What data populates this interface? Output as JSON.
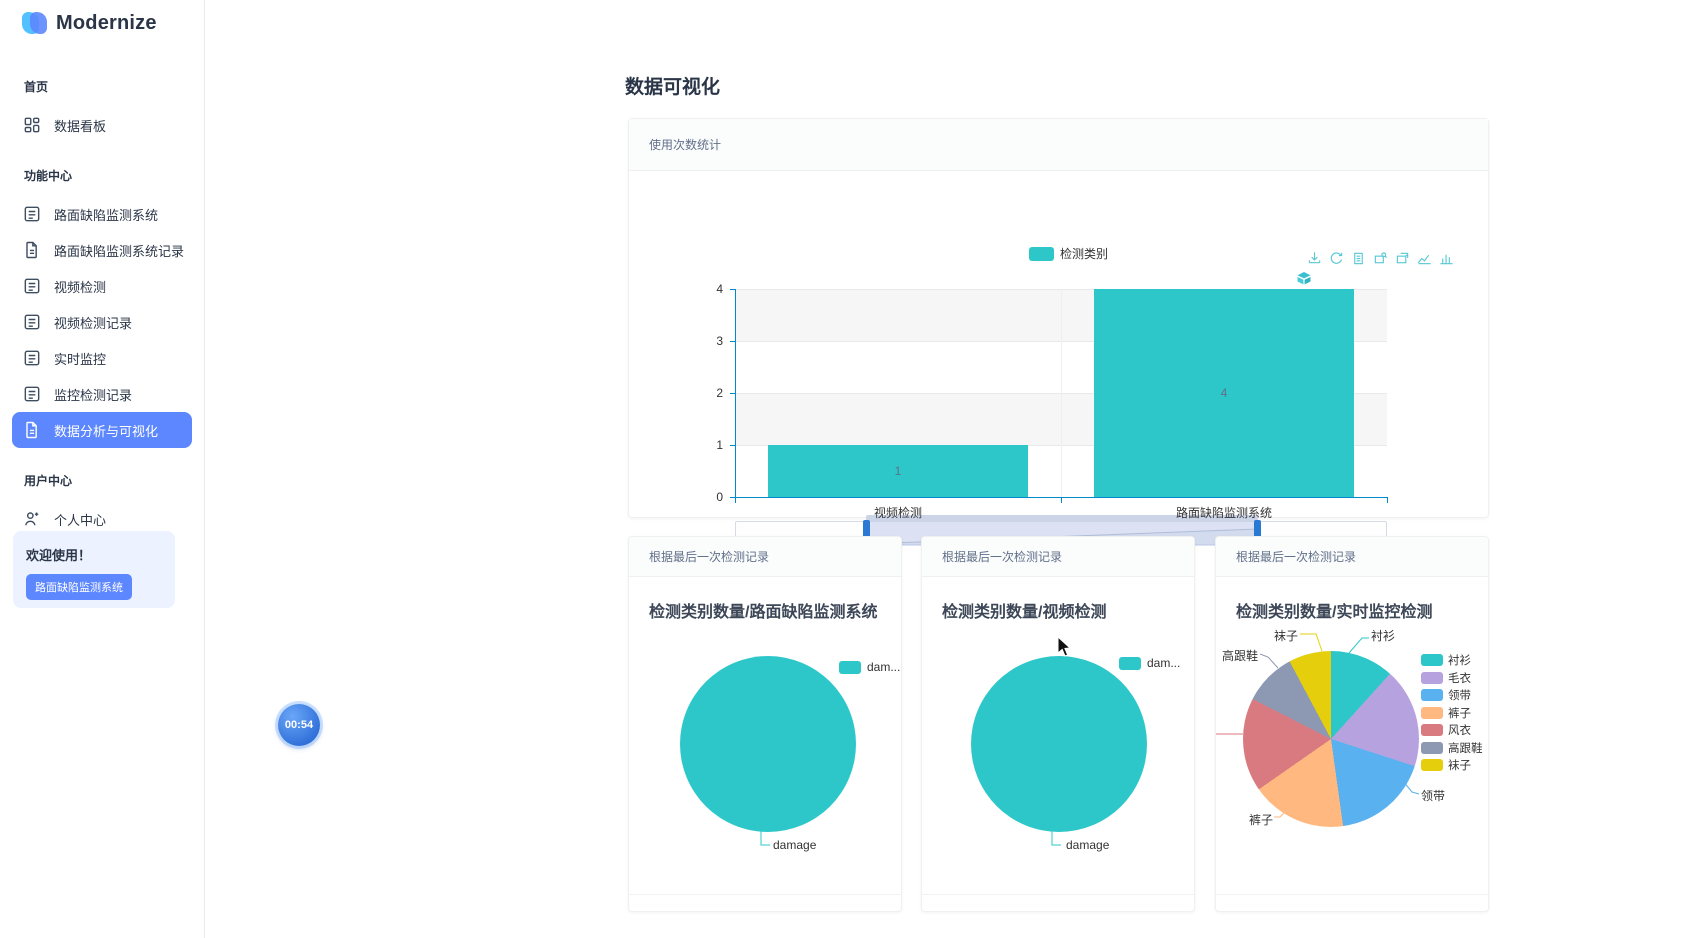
{
  "app": {
    "brand": "Modernize"
  },
  "page": {
    "title": "数据可视化"
  },
  "timer_badge": "00:54",
  "colors": {
    "primary": "#5d87ff",
    "teal": "#2ec7c9",
    "axis_line": "#008acd",
    "active_item_bg": "#5d87ff",
    "welcome_bg": "#ecf2ff"
  },
  "sidebar": {
    "sections": [
      {
        "label": "首页",
        "items": [
          {
            "id": "dashboard",
            "label": "数据看板",
            "icon": "dashboard-grid-icon",
            "active": false
          }
        ]
      },
      {
        "label": "功能中心",
        "items": [
          {
            "id": "road-defect-system",
            "label": "路面缺陷监测系统",
            "icon": "list-icon",
            "active": false
          },
          {
            "id": "road-defect-system-records",
            "label": "路面缺陷监测系统记录",
            "icon": "file-icon",
            "active": false
          },
          {
            "id": "video-detection",
            "label": "视频检测",
            "icon": "list-icon",
            "active": false
          },
          {
            "id": "video-detection-records",
            "label": "视频检测记录",
            "icon": "list-icon",
            "active": false
          },
          {
            "id": "realtime-monitor",
            "label": "实时监控",
            "icon": "list-icon",
            "active": false
          },
          {
            "id": "monitor-records",
            "label": "监控检测记录",
            "icon": "list-icon",
            "active": false
          },
          {
            "id": "data-analysis",
            "label": "数据分析与可视化",
            "icon": "file-icon",
            "active": true
          }
        ]
      },
      {
        "label": "用户中心",
        "items": [
          {
            "id": "personal-center",
            "label": "个人中心",
            "icon": "person-add-icon",
            "active": false
          }
        ]
      }
    ],
    "welcome": {
      "title": "欢迎使用！",
      "button": "路面缺陷监测系统"
    }
  },
  "chart_data": [
    {
      "type": "bar",
      "panel_header": "使用次数统计",
      "legend": [
        {
          "name": "检测类别",
          "color": "#2ec7c9"
        }
      ],
      "legend_position": "top-center",
      "categories": [
        "视频检测",
        "路面缺陷监测系统"
      ],
      "series": [
        {
          "name": "检测类别",
          "values": [
            1,
            4
          ],
          "color": "#2ec7c9"
        }
      ],
      "value_labels": [
        "1",
        "4"
      ],
      "ylim": [
        0,
        4
      ],
      "yticks": [
        0,
        1,
        2,
        3,
        4
      ],
      "grid": "horizontal gridlines with alternating split-area bands",
      "toolbox": [
        "save-image-icon",
        "restore-icon",
        "data-view-icon",
        "data-zoom-icon",
        "zoom-reset-icon",
        "line-chart-icon",
        "bar-chart-icon",
        "stack-icon"
      ],
      "datazoom": {
        "start_pct": 20,
        "end_pct": 80
      }
    },
    {
      "type": "pie",
      "panel_header": "根据最后一次检测记录",
      "title": "检测类别数量/路面缺陷监测系统",
      "legend": [
        {
          "name": "dam...",
          "color": "#2ec7c9"
        }
      ],
      "slices": [
        {
          "label": "damage",
          "pct": 100,
          "color": "#2ec7c9"
        }
      ],
      "callouts": [
        {
          "text": "damage"
        }
      ]
    },
    {
      "type": "pie",
      "panel_header": "根据最后一次检测记录",
      "title": "检测类别数量/视频检测",
      "legend": [
        {
          "name": "dam...",
          "color": "#2ec7c9"
        }
      ],
      "slices": [
        {
          "label": "damage",
          "pct": 100,
          "color": "#2ec7c9"
        }
      ],
      "callouts": [
        {
          "text": "damage"
        }
      ]
    },
    {
      "type": "pie",
      "panel_header": "根据最后一次检测记录",
      "title": "检测类别数量/实时监控检测",
      "legend": [
        {
          "name": "衬衫",
          "color": "#2ec7c9"
        },
        {
          "name": "毛衣",
          "color": "#b6a2de"
        },
        {
          "name": "领带",
          "color": "#5ab1ef"
        },
        {
          "name": "裤子",
          "color": "#ffb980"
        },
        {
          "name": "风衣",
          "color": "#d87a80"
        },
        {
          "name": "高跟鞋",
          "color": "#8d98b3"
        },
        {
          "name": "袜子",
          "color": "#e5cf0d"
        }
      ],
      "slices": [
        {
          "label": "衬衫",
          "pct": 11.7,
          "color": "#2ec7c9"
        },
        {
          "label": "毛衣",
          "pct": 18.3,
          "color": "#b6a2de"
        },
        {
          "label": "领带",
          "pct": 17.8,
          "color": "#5ab1ef"
        },
        {
          "label": "裤子",
          "pct": 17.5,
          "color": "#ffb980"
        },
        {
          "label": "风衣",
          "pct": 17.2,
          "color": "#d87a80"
        },
        {
          "label": "高跟鞋",
          "pct": 9.7,
          "color": "#8d98b3"
        },
        {
          "label": "袜子",
          "pct": 7.8,
          "color": "#e5cf0d"
        }
      ],
      "callouts": [
        {
          "text": "袜子"
        },
        {
          "text": "衬衫"
        },
        {
          "text": "高跟鞋"
        },
        {
          "text": "领带"
        },
        {
          "text": "裤子"
        }
      ]
    }
  ]
}
